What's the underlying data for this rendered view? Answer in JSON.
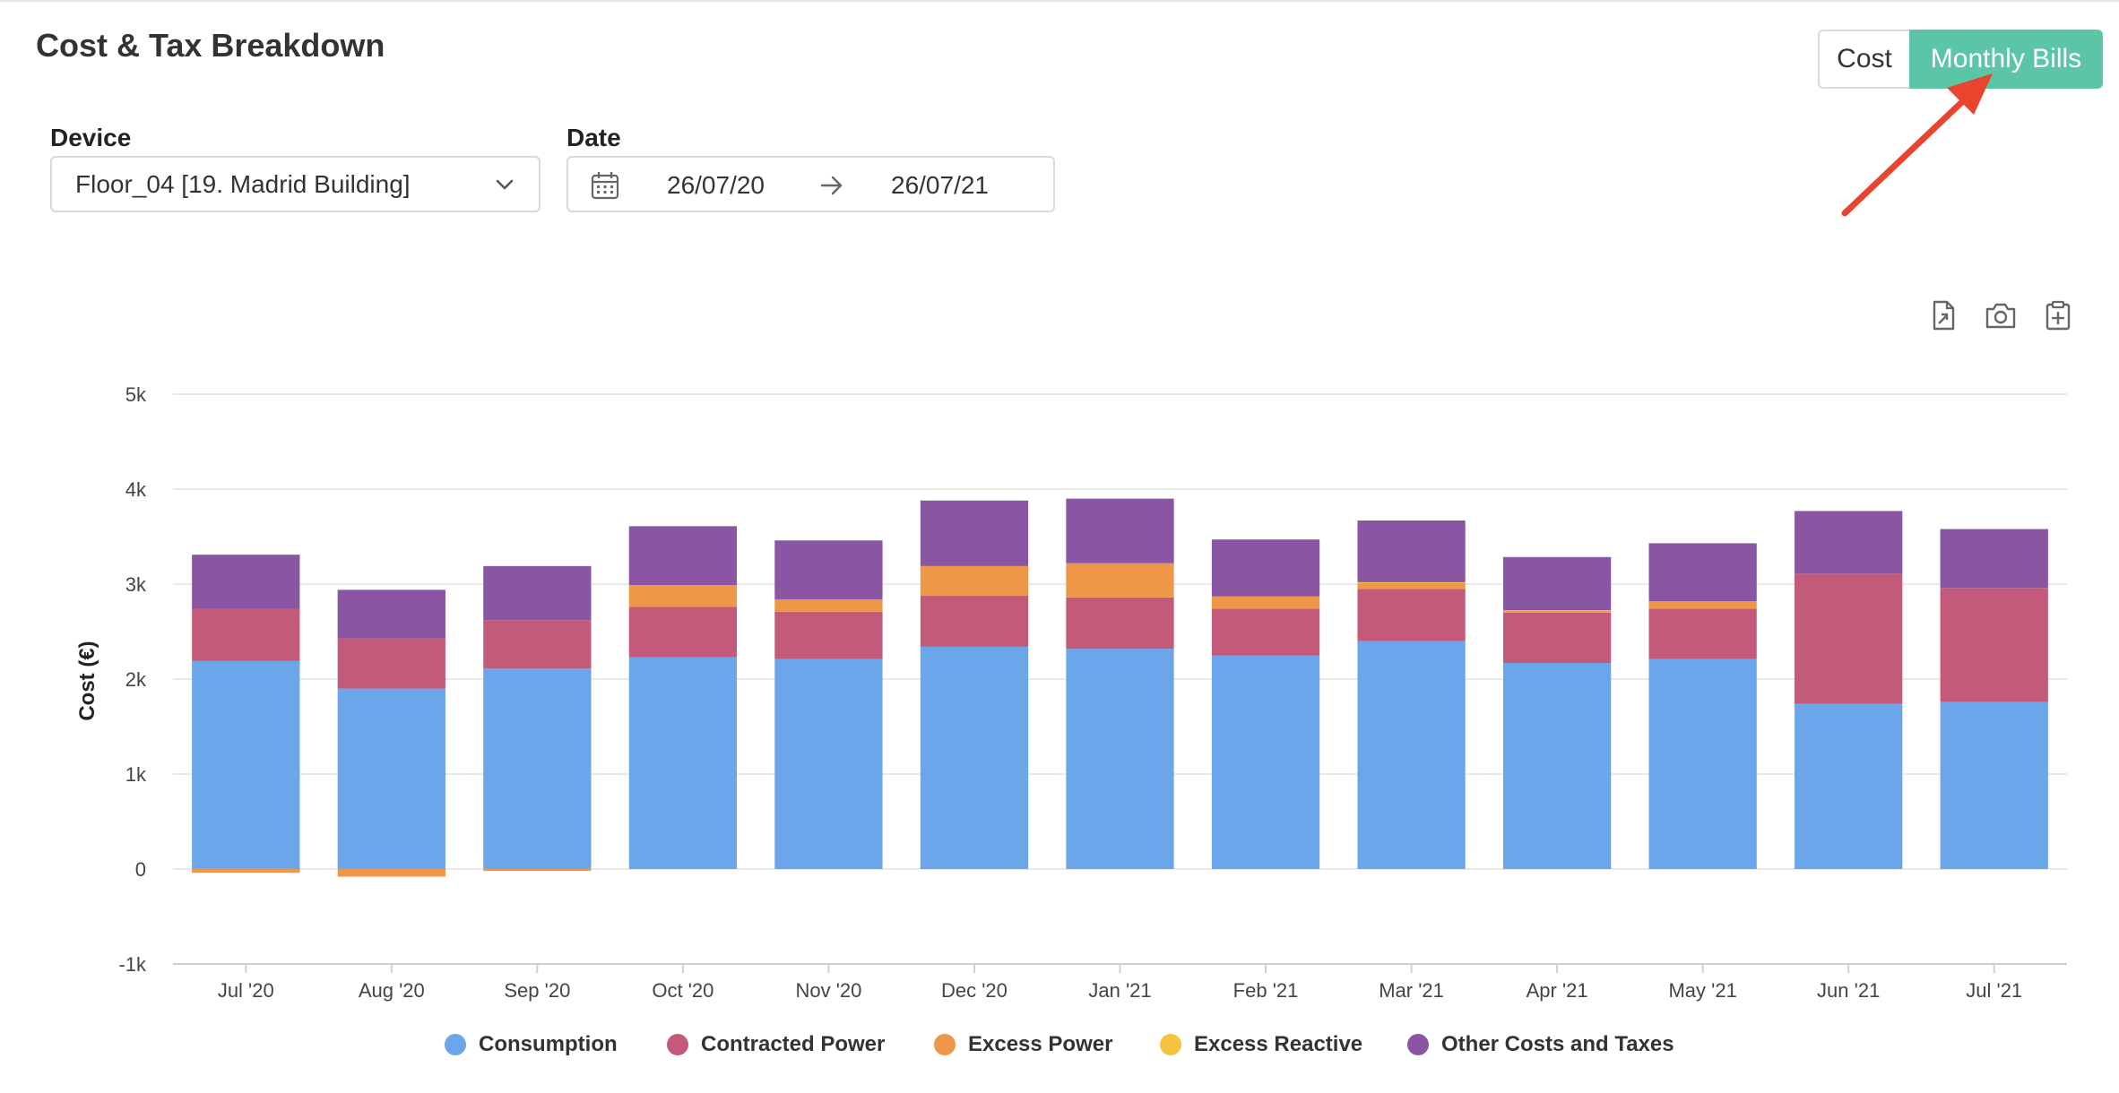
{
  "header": {
    "title": "Cost & Tax Breakdown"
  },
  "toggle": {
    "cost_label": "Cost",
    "monthly_label": "Monthly Bills",
    "active": "Monthly Bills",
    "accent": "#5cc5a5"
  },
  "filters": {
    "device_label": "Device",
    "device_value": "Floor_04 [19. Madrid Building]",
    "date_label": "Date",
    "date_from": "26/07/20",
    "date_to": "26/07/21"
  },
  "toolbar": {
    "icons": [
      "export-file-icon",
      "camera-icon",
      "clipboard-add-icon"
    ]
  },
  "annotation": {
    "arrow_color": "#e8442e"
  },
  "chart_data": {
    "type": "bar",
    "stacked": true,
    "title": "",
    "xlabel": "",
    "ylabel": "Cost (€)",
    "ylim": [
      -1000,
      5000
    ],
    "yticks": [
      -1000,
      0,
      1000,
      2000,
      3000,
      4000,
      5000
    ],
    "ytick_labels": [
      "-1k",
      "0",
      "1k",
      "2k",
      "3k",
      "4k",
      "5k"
    ],
    "grid": true,
    "legend_position": "bottom",
    "categories": [
      "Jul '20",
      "Aug '20",
      "Sep '20",
      "Oct '20",
      "Nov '20",
      "Dec '20",
      "Jan '21",
      "Feb '21",
      "Mar '21",
      "Apr '21",
      "May '21",
      "Jun '21",
      "Jul '21"
    ],
    "series": [
      {
        "name": "Consumption",
        "color": "#6ca6ea",
        "values": [
          2190,
          1900,
          2110,
          2230,
          2210,
          2340,
          2320,
          2250,
          2400,
          2170,
          2210,
          1740,
          1760
        ]
      },
      {
        "name": "Contracted Power",
        "color": "#c35a79",
        "values": [
          550,
          530,
          510,
          530,
          500,
          540,
          540,
          490,
          550,
          530,
          530,
          1370,
          1200
        ]
      },
      {
        "name": "Excess Power",
        "color": "#ee9749",
        "values": [
          -40,
          -80,
          -20,
          230,
          130,
          310,
          360,
          130,
          60,
          20,
          80,
          0,
          0
        ]
      },
      {
        "name": "Excess Reactive",
        "color": "#f6c43c",
        "values": [
          0,
          0,
          0,
          0,
          0,
          0,
          0,
          0,
          10,
          5,
          0,
          0,
          0
        ]
      },
      {
        "name": "Other Costs and Taxes",
        "color": "#8a55a2",
        "values": [
          570,
          510,
          570,
          620,
          620,
          690,
          680,
          600,
          650,
          560,
          610,
          660,
          620
        ]
      }
    ]
  }
}
